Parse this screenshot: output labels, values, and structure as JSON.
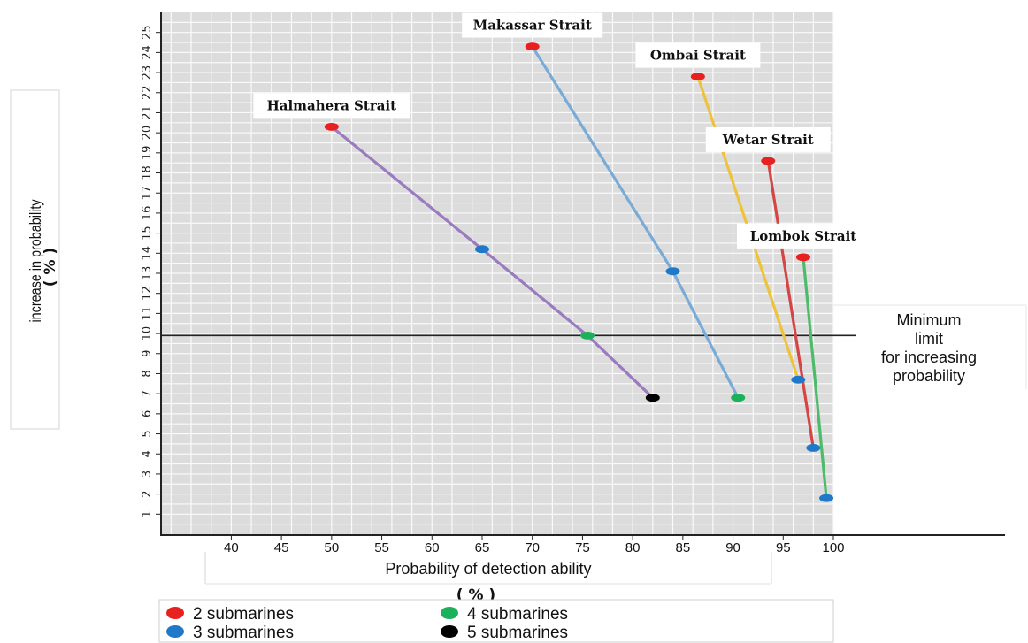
{
  "chart_data": {
    "type": "line",
    "xlabel": "Probability of detection ability",
    "xunit": "( % )",
    "ylabel": "increase in probability",
    "yunit": "( % )",
    "xlim": [
      33,
      100
    ],
    "ylim": [
      0,
      26
    ],
    "x_ticks": [
      40,
      45,
      50,
      55,
      60,
      65,
      70,
      75,
      80,
      85,
      90,
      95,
      100
    ],
    "y_ticks": [
      1,
      2,
      3,
      4,
      5,
      6,
      7,
      8,
      9,
      10,
      11,
      12,
      13,
      14,
      15,
      16,
      17,
      18,
      19,
      20,
      21,
      22,
      23,
      24,
      25
    ],
    "grid": true,
    "reference_line": {
      "y": 9.9,
      "label": [
        "Minimum",
        "limit",
        "for increasing",
        "probability"
      ]
    },
    "lines": [
      {
        "label": "Halmahera  Strait",
        "color": "#9b7bc0",
        "points": [
          {
            "x": 50,
            "y": 20.3,
            "sub": "2"
          },
          {
            "x": 65,
            "y": 14.2,
            "sub": "3"
          },
          {
            "x": 75.5,
            "y": 9.9,
            "sub": "4"
          },
          {
            "x": 82,
            "y": 6.8,
            "sub": "5"
          }
        ]
      },
      {
        "label": "Makassar Strait",
        "color": "#7aaad6",
        "points": [
          {
            "x": 70,
            "y": 24.3,
            "sub": "2"
          },
          {
            "x": 84,
            "y": 13.1,
            "sub": "3"
          },
          {
            "x": 90.5,
            "y": 6.8,
            "sub": "4"
          }
        ]
      },
      {
        "label": "Ombai  Strait",
        "color": "#efc23d",
        "points": [
          {
            "x": 86.5,
            "y": 22.8,
            "sub": "2"
          },
          {
            "x": 96.5,
            "y": 7.7,
            "sub": "3"
          }
        ]
      },
      {
        "label": "Wetar  Strait",
        "color": "#d44545",
        "points": [
          {
            "x": 93.5,
            "y": 18.6,
            "sub": "2"
          },
          {
            "x": 98,
            "y": 4.3,
            "sub": "3"
          }
        ]
      },
      {
        "label": "Lombok  Strait",
        "color": "#4cbb6a",
        "points": [
          {
            "x": 97,
            "y": 13.8,
            "sub": "2"
          },
          {
            "x": 99.3,
            "y": 1.8,
            "sub": "3"
          }
        ]
      }
    ],
    "legend": [
      {
        "key": "2",
        "label": "2 submarines",
        "color": "#e8201f"
      },
      {
        "key": "4",
        "label": "4 submarines",
        "color": "#1bb15a"
      },
      {
        "key": "3",
        "label": "3 submarines",
        "color": "#1f78c8"
      },
      {
        "key": "5",
        "label": "5 submarines",
        "color": "#000000"
      }
    ],
    "legend_position": "bottom-left"
  }
}
